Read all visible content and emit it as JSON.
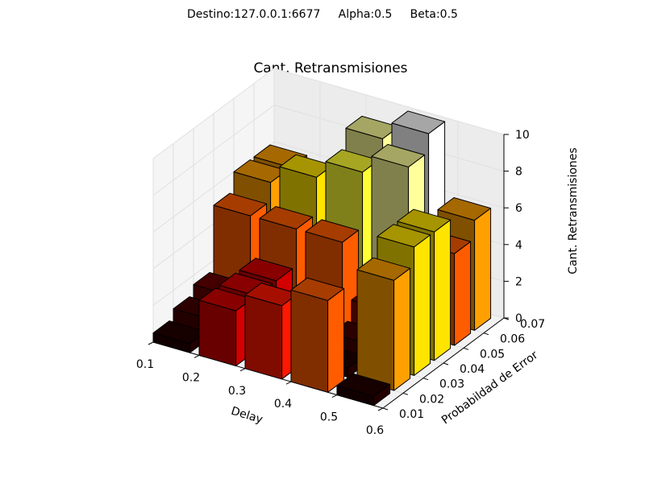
{
  "chart_data": {
    "type": "bar3d",
    "suptitle": "Destino:127.0.0.1:6677     Alpha:0.5     Beta:0.5",
    "title": "Cant. Retransmisiones",
    "xlabel": "Delay",
    "ylabel": "Probabildad de Error",
    "zlabel": "Cant. Retransmisiones",
    "x": [
      0.1,
      0.2,
      0.3,
      0.4,
      0.5
    ],
    "y": [
      0.01,
      0.02,
      0.03,
      0.04,
      0.05,
      0.06
    ],
    "values": [
      [
        0.5,
        3,
        4,
        5,
        0.5
      ],
      [
        1,
        3,
        1,
        0.5,
        6
      ],
      [
        1.5,
        3,
        1.5,
        1,
        7
      ],
      [
        5,
        5,
        5,
        2,
        7
      ],
      [
        6,
        7,
        8,
        9,
        5
      ],
      [
        6,
        2,
        9,
        10,
        6
      ]
    ],
    "xlim": [
      0.1,
      0.6
    ],
    "ylim": [
      0.01,
      0.07
    ],
    "zlim": [
      0,
      10
    ],
    "xticks": [
      0.1,
      0.2,
      0.3,
      0.4,
      0.5,
      0.6
    ],
    "yticks": [
      0.01,
      0.02,
      0.03,
      0.04,
      0.05,
      0.06,
      0.07
    ],
    "zticks": [
      0,
      2,
      4,
      6,
      8,
      10
    ],
    "colormap": "hot",
    "grid": true
  }
}
